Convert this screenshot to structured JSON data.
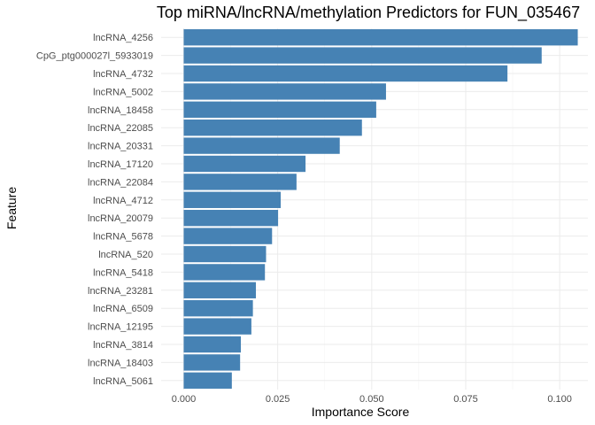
{
  "chart_data": {
    "type": "bar",
    "orientation": "horizontal",
    "title": "Top miRNA/lncRNA/methylation Predictors for FUN_035467",
    "xlabel": "Importance Score",
    "ylabel": "Feature",
    "xlim": [
      -0.006,
      0.1075
    ],
    "xticks": [
      0.0,
      0.025,
      0.05,
      0.075,
      0.1
    ],
    "xtick_labels": [
      "0.000",
      "0.025",
      "0.050",
      "0.075",
      "0.100"
    ],
    "grid": true,
    "bar_color": "#4682B4",
    "categories": [
      "lncRNA_4256",
      "CpG_ptg000027l_5933019",
      "lncRNA_4732",
      "lncRNA_5002",
      "lncRNA_18458",
      "lncRNA_22085",
      "lncRNA_20331",
      "lncRNA_17120",
      "lncRNA_22084",
      "lncRNA_4712",
      "lncRNA_20079",
      "lncRNA_5678",
      "lncRNA_520",
      "lncRNA_5418",
      "lncRNA_23281",
      "lncRNA_6509",
      "lncRNA_12195",
      "lncRNA_3814",
      "lncRNA_18403",
      "lncRNA_5061"
    ],
    "values": [
      0.1048,
      0.0952,
      0.0861,
      0.0538,
      0.0512,
      0.0474,
      0.0415,
      0.0324,
      0.03,
      0.0258,
      0.0251,
      0.0235,
      0.0219,
      0.0216,
      0.0192,
      0.0184,
      0.018,
      0.0152,
      0.015,
      0.0128
    ]
  }
}
